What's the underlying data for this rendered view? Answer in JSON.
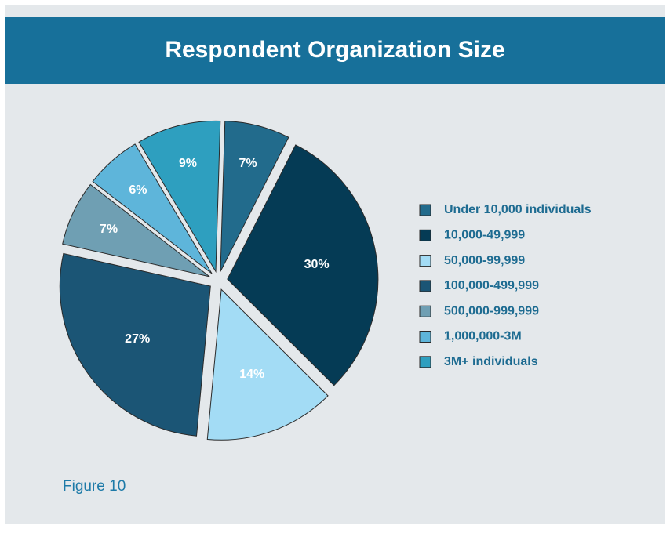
{
  "chart_data": {
    "type": "pie",
    "title": "Respondent Organization Size",
    "categories": [
      "Under 10,000 individuals",
      "10,000-49,999",
      "50,000-99,999",
      "100,000-499,999",
      "500,000-999,999",
      "1,000,000-3M",
      "3M+ individuals"
    ],
    "values": [
      7,
      30,
      14,
      27,
      7,
      6,
      9
    ],
    "value_labels": [
      "7%",
      "30%",
      "14%",
      "27%",
      "7%",
      "6%",
      "9%"
    ],
    "colors": [
      "#226b8c",
      "#053b55",
      "#a3dcf5",
      "#1b5575",
      "#6f9fb3",
      "#5eb5da",
      "#2e9fbf"
    ],
    "caption": "Figure 10"
  }
}
